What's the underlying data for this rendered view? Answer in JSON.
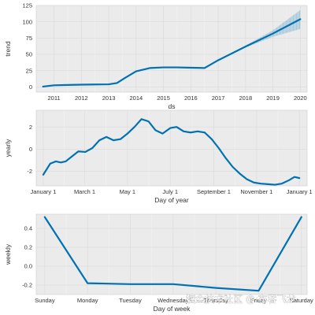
{
  "chart_data": [
    {
      "type": "line",
      "xlabel": "ds",
      "ylabel": "trend",
      "xlim": [
        2010.35,
        2020.25
      ],
      "ylim": [
        -8,
        125
      ],
      "x_ticks": [
        2011,
        2012,
        2013,
        2014,
        2015,
        2016,
        2017,
        2018,
        2019,
        2020
      ],
      "x_tick_labels": [
        "2011",
        "2012",
        "2013",
        "2014",
        "2015",
        "2016",
        "2017",
        "2018",
        "2019",
        "2020"
      ],
      "y_ticks": [
        0,
        25,
        50,
        75,
        100,
        125
      ],
      "y_tick_labels": [
        "0",
        "25",
        "50",
        "75",
        "100",
        "125"
      ],
      "grid": true,
      "series": [
        {
          "x": [
            2010.6,
            2011.0,
            2011.5,
            2012.0,
            2012.5,
            2013.0,
            2013.3,
            2013.6,
            2014.0,
            2014.5,
            2015.0,
            2015.5,
            2016.0,
            2016.5,
            2017.0,
            2018.0,
            2019.0,
            2020.0
          ],
          "y": [
            0.5,
            2.5,
            3.0,
            3.5,
            3.8,
            4.0,
            6.0,
            14.0,
            24.0,
            29.0,
            30.0,
            30.0,
            29.5,
            29.0,
            41.0,
            62.0,
            82.0,
            104.0
          ]
        }
      ],
      "uncertainty": {
        "x": [
          2016.5,
          2017.0,
          2018.0,
          2019.0,
          2020.0
        ],
        "upper": [
          29.0,
          41.5,
          63.5,
          87.0,
          118.0
        ],
        "lower": [
          29.0,
          40.5,
          60.5,
          77.0,
          89.0
        ]
      }
    },
    {
      "type": "line",
      "xlabel": "Day of year",
      "ylabel": "yearly",
      "xlim": [
        -10,
        376
      ],
      "ylim": [
        -3.3,
        3.5
      ],
      "x_ticks": [
        0,
        59,
        120,
        181,
        243,
        304,
        365
      ],
      "x_tick_labels": [
        "January 1",
        "March 1",
        "May 1",
        "July 1",
        "September 1",
        "November 1",
        "January 1"
      ],
      "y_ticks": [
        -2,
        0,
        2
      ],
      "y_tick_labels": [
        "-2",
        "0",
        "2"
      ],
      "grid": true,
      "series": [
        {
          "x": [
            0,
            10,
            18,
            25,
            32,
            40,
            50,
            60,
            70,
            80,
            90,
            100,
            110,
            120,
            130,
            140,
            150,
            160,
            170,
            181,
            190,
            200,
            210,
            220,
            230,
            240,
            250,
            260,
            270,
            280,
            290,
            300,
            310,
            320,
            330,
            340,
            350,
            358,
            365
          ],
          "y": [
            -2.3,
            -1.3,
            -1.1,
            -1.2,
            -1.1,
            -0.7,
            -0.2,
            -0.25,
            0.1,
            0.8,
            1.1,
            0.8,
            0.9,
            1.4,
            2.0,
            2.7,
            2.5,
            1.7,
            1.4,
            1.9,
            2.0,
            1.6,
            1.5,
            1.6,
            1.5,
            0.9,
            0.1,
            -0.8,
            -1.6,
            -2.2,
            -2.7,
            -3.0,
            -3.1,
            -3.15,
            -3.2,
            -3.1,
            -2.8,
            -2.5,
            -2.6
          ]
        }
      ]
    },
    {
      "type": "line",
      "xlabel": "Day of week",
      "ylabel": "weekly",
      "xlim": [
        -0.3,
        9.2
      ],
      "ylim": [
        -0.3,
        0.55
      ],
      "x_ticks": [
        0,
        1.5,
        3.0,
        4.5,
        6.0,
        7.5,
        9.0
      ],
      "x_tick_labels": [
        "Sunday",
        "Monday",
        "Tuesday",
        "Wednesday",
        "Thursday",
        "Friday",
        "Saturday"
      ],
      "y_ticks": [
        -0.2,
        0.0,
        0.2,
        0.4
      ],
      "y_tick_labels": [
        "-0.2",
        "0.0",
        "0.2",
        "0.4"
      ],
      "grid": true,
      "series": [
        {
          "x": [
            0,
            1.5,
            3.0,
            4.5,
            6.0,
            7.5,
            9.0
          ],
          "y": [
            0.52,
            -0.18,
            -0.19,
            -0.19,
            -0.23,
            -0.26,
            0.52
          ]
        }
      ]
    }
  ],
  "watermark": "掘金技术社区 @ 布客飞龙",
  "colors": {
    "line": "#0072b2",
    "band": "#0072b2",
    "grid": "#dcdcdc",
    "axes": "#cccccc"
  }
}
